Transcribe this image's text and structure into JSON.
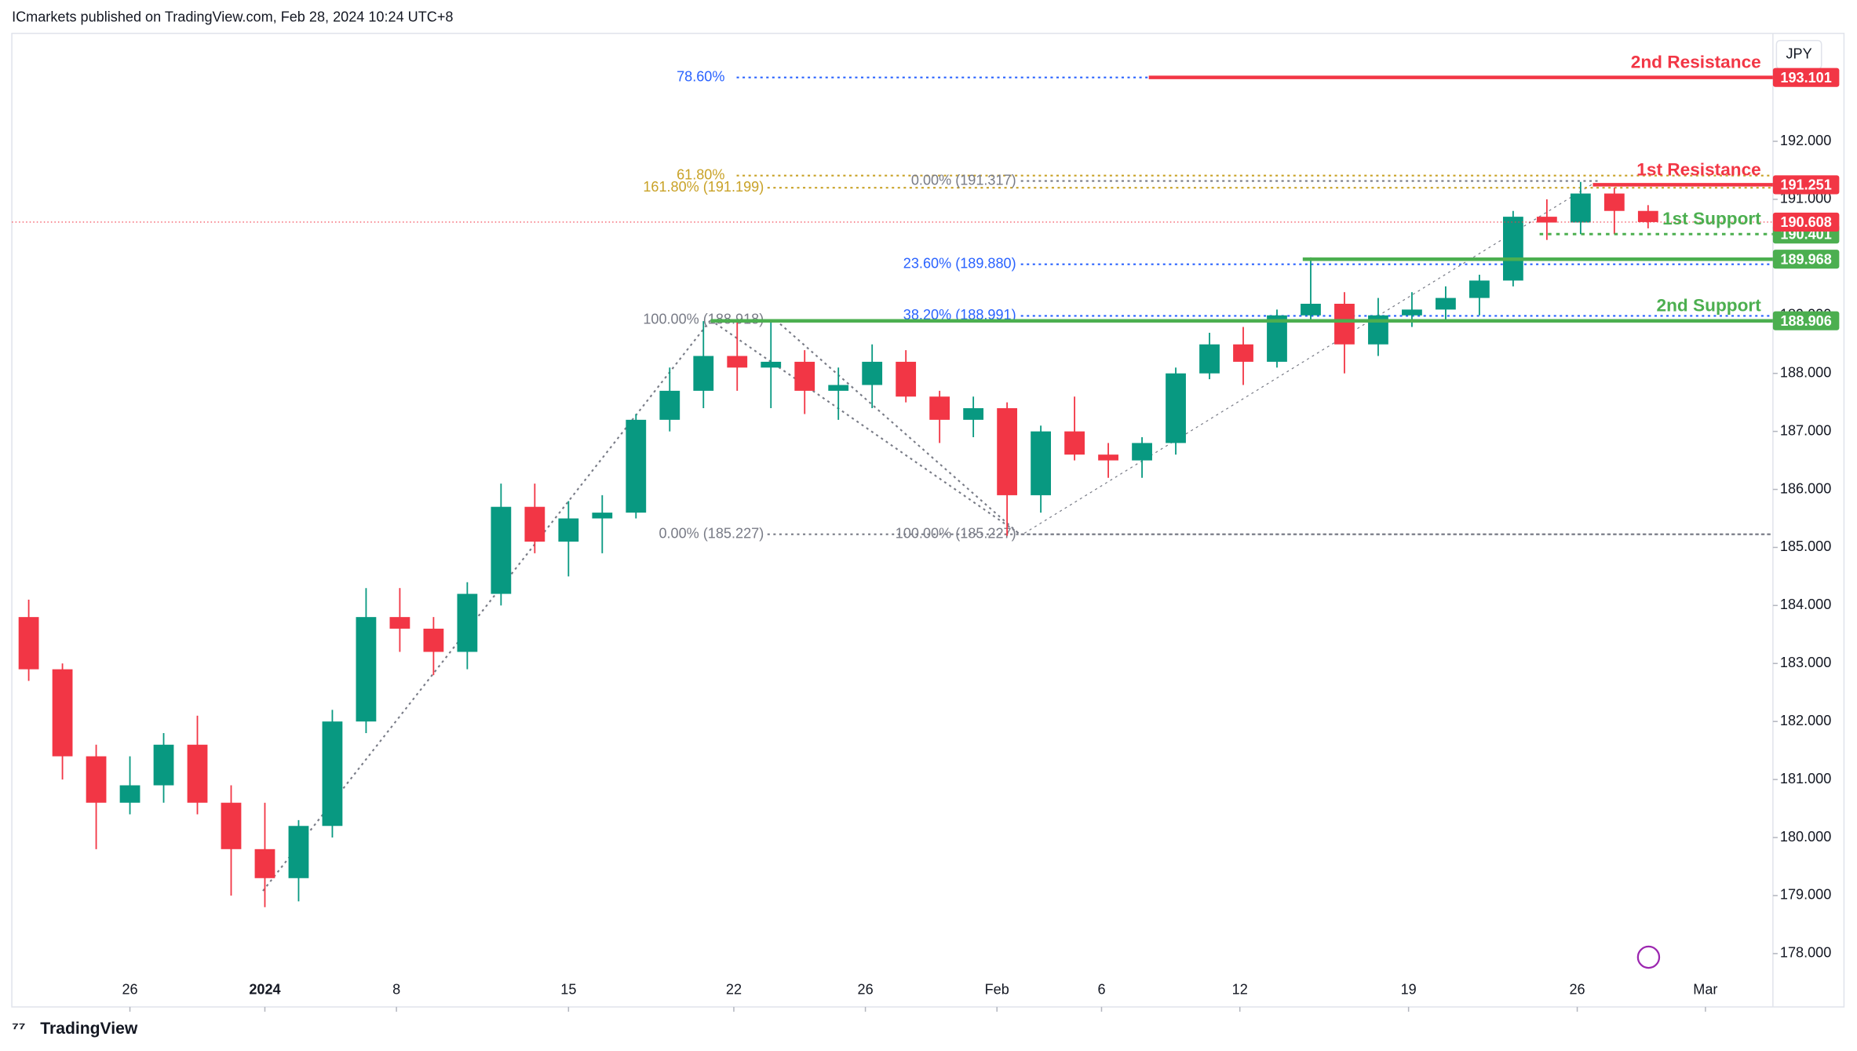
{
  "chart_data": {
    "type": "candlestick",
    "header": "ICmarkets published on TradingView.com, Feb 28, 2024 10:24 UTC+8",
    "footer": "TradingView",
    "currency": "JPY",
    "up_color": "#089981",
    "down_color": "#f23645",
    "open": [
      183.8,
      182.9,
      181.4,
      180.6,
      180.9,
      181.6,
      180.6,
      179.8,
      179.3,
      180.2,
      182.0,
      183.8,
      183.6,
      183.2,
      184.2,
      185.7,
      185.1,
      185.5,
      185.6,
      187.2,
      187.7,
      188.3,
      188.1,
      188.2,
      187.7,
      187.8,
      188.2,
      187.6,
      187.2,
      187.4,
      185.9,
      187.0,
      186.6,
      186.5,
      186.8,
      188.0,
      188.5,
      188.2,
      189.0,
      189.2,
      188.5,
      189.0,
      189.1,
      189.3,
      189.6,
      190.7,
      190.6,
      191.1,
      190.8
    ],
    "high": [
      184.1,
      183.0,
      181.6,
      181.4,
      181.8,
      182.1,
      180.9,
      180.6,
      180.3,
      182.2,
      184.3,
      184.3,
      183.8,
      184.4,
      186.1,
      186.1,
      185.8,
      185.9,
      187.3,
      188.1,
      188.9,
      188.9,
      188.9,
      188.4,
      188.1,
      188.5,
      188.4,
      187.7,
      187.6,
      187.5,
      187.1,
      187.6,
      186.8,
      186.9,
      188.1,
      188.7,
      188.8,
      189.1,
      190.0,
      189.4,
      189.3,
      189.4,
      189.5,
      189.7,
      190.8,
      191.0,
      191.3,
      191.2,
      190.9
    ],
    "low": [
      182.7,
      181.0,
      179.8,
      180.4,
      180.6,
      180.4,
      179.0,
      178.8,
      178.9,
      180.0,
      181.8,
      183.2,
      182.8,
      182.9,
      184.0,
      184.9,
      184.5,
      184.9,
      185.5,
      187.0,
      187.4,
      187.7,
      187.4,
      187.3,
      187.2,
      187.4,
      187.5,
      186.8,
      186.9,
      185.2,
      185.6,
      186.5,
      186.2,
      186.2,
      186.6,
      187.9,
      187.8,
      188.1,
      188.9,
      188.0,
      188.3,
      188.8,
      188.9,
      189.0,
      189.5,
      190.3,
      190.4,
      190.4,
      190.5
    ],
    "close": [
      182.9,
      181.4,
      180.6,
      180.9,
      181.6,
      180.6,
      179.8,
      179.3,
      180.2,
      182.0,
      183.8,
      183.6,
      183.2,
      184.2,
      185.7,
      185.1,
      185.5,
      185.6,
      187.2,
      187.7,
      188.3,
      188.1,
      188.2,
      187.7,
      187.8,
      188.2,
      187.6,
      187.2,
      187.4,
      185.9,
      187.0,
      186.6,
      186.5,
      186.8,
      188.0,
      188.5,
      188.2,
      189.0,
      189.2,
      188.5,
      189.0,
      189.1,
      189.3,
      189.6,
      190.7,
      190.6,
      191.1,
      190.8,
      190.608
    ],
    "xlim": [
      0,
      52.2
    ],
    "xticks": [
      {
        "value": 3.5,
        "label": "26"
      },
      {
        "value": 7.5,
        "label": "2024"
      },
      {
        "value": 11.4,
        "label": "8"
      },
      {
        "value": 16.5,
        "label": "15"
      },
      {
        "value": 21.4,
        "label": "22"
      },
      {
        "value": 25.3,
        "label": "26"
      },
      {
        "value": 29.2,
        "label": "Feb"
      },
      {
        "value": 32.3,
        "label": "6"
      },
      {
        "value": 36.4,
        "label": "12"
      },
      {
        "value": 41.4,
        "label": "19"
      },
      {
        "value": 46.4,
        "label": "26"
      },
      {
        "value": 50.2,
        "label": "Mar"
      }
    ],
    "ylim": [
      177.08,
      193.86
    ],
    "yticks": [
      {
        "value": 178,
        "label": "178.000"
      },
      {
        "value": 179,
        "label": "179.000"
      },
      {
        "value": 180,
        "label": "180.000"
      },
      {
        "value": 181,
        "label": "181.000"
      },
      {
        "value": 182,
        "label": "182.000"
      },
      {
        "value": 183,
        "label": "183.000"
      },
      {
        "value": 184,
        "label": "184.000"
      },
      {
        "value": 185,
        "label": "185.000"
      },
      {
        "value": 186,
        "label": "186.000"
      },
      {
        "value": 187,
        "label": "187.000"
      },
      {
        "value": 188,
        "label": "188.000"
      },
      {
        "value": 189,
        "label": "189.000"
      },
      {
        "value": 190,
        "label": "190.000"
      },
      {
        "value": 191,
        "label": "191.000"
      },
      {
        "value": 192,
        "label": "192.000"
      }
    ],
    "levels": [
      {
        "label": "2nd Resistance",
        "value": 193.101,
        "color": "#f23645"
      },
      {
        "label": "1st Resistance",
        "value": 191.251,
        "color": "#f23645"
      },
      {
        "label": "1st Support",
        "value": 190.401,
        "color": "#4caf50"
      },
      {
        "value": 189.968,
        "color": "#4caf50"
      },
      {
        "label": "2nd Support",
        "value": 188.906,
        "color": "#4caf50"
      }
    ],
    "fib": [
      {
        "label": "78.60%",
        "value": 193.101,
        "color": "#2962ff"
      },
      {
        "label": "61.80%",
        "value": 191.41,
        "color": "#c9a227"
      },
      {
        "label": "161.80% (191.199)",
        "value": 191.199,
        "color": "#c9a227"
      },
      {
        "label": "0.00% (191.317)",
        "value": 191.317,
        "color": "#787b86"
      },
      {
        "label": "23.60% (189.880)",
        "value": 189.88,
        "color": "#2962ff"
      },
      {
        "label": "100.00% (188.918)",
        "value": 188.918,
        "color": "#787b86"
      },
      {
        "label": "38.20% (188.991)",
        "value": 188.991,
        "color": "#2962ff"
      },
      {
        "label": "0.00% (185.227)",
        "value": 185.227,
        "color": "#787b86"
      },
      {
        "label": "100.00% (185.227)",
        "value": 185.227,
        "color": "#787b86"
      }
    ]
  }
}
